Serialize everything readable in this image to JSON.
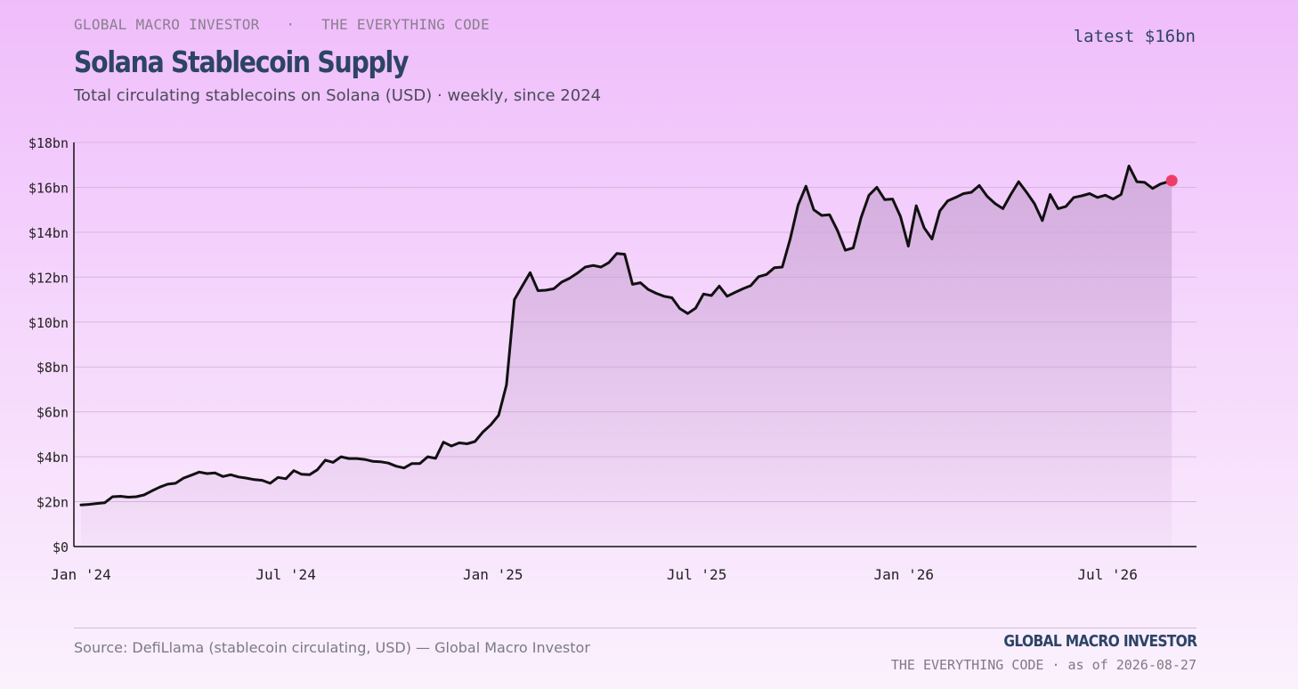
{
  "header": {
    "kicker_left": "GLOBAL MACRO INVESTOR",
    "kicker_sep": "·",
    "kicker_right": "THE EVERYTHING CODE",
    "latest": "latest $16bn",
    "title": "Solana Stablecoin Supply",
    "subtitle": "Total circulating stablecoins on Solana (USD) · weekly, since 2024"
  },
  "footer": {
    "source": "Source: DefiLlama (stablecoin circulating, USD) — Global Macro Investor",
    "brand": "GLOBAL MACRO INVESTOR",
    "asof": "THE EVERYTHING CODE · as of 2026-08-27"
  },
  "colors": {
    "line": "#111111",
    "area": "#c9a3d3",
    "marker": "#ef3c67",
    "grid": "#d6b7dd",
    "axis": "#111111"
  },
  "chart_data": {
    "type": "area",
    "title": "Solana Stablecoin Supply",
    "subtitle": "Total circulating stablecoins on Solana (USD) · weekly, since 2024",
    "xlabel": "",
    "ylabel": "",
    "unit": "$bn",
    "ylim": [
      0,
      18
    ],
    "yticks": [
      0,
      2,
      4,
      6,
      8,
      10,
      12,
      14,
      16,
      18
    ],
    "ytick_labels": [
      "$0",
      "$2bn",
      "$4bn",
      "$6bn",
      "$8bn",
      "$10bn",
      "$12bn",
      "$14bn",
      "$16bn",
      "$18bn"
    ],
    "xlim": [
      "2024-01-01",
      "2026-08-27"
    ],
    "xticks": [
      "2024-01-01",
      "2024-07-01",
      "2025-01-01",
      "2025-07-01",
      "2026-01-01",
      "2026-07-01"
    ],
    "xtick_labels": [
      "Jan '24",
      "Jul '24",
      "Jan '25",
      "Jul '25",
      "Jan '26",
      "Jul '26"
    ],
    "grid": true,
    "latest_marker": {
      "x": "2026-08-27",
      "y": 16.3
    },
    "series": [
      {
        "values": [
          [
            "2024-01-01",
            1.85
          ],
          [
            "2024-01-08",
            1.88
          ],
          [
            "2024-01-15",
            1.92
          ],
          [
            "2024-01-22",
            1.95
          ],
          [
            "2024-01-29",
            2.22
          ],
          [
            "2024-02-05",
            2.24
          ],
          [
            "2024-02-12",
            2.2
          ],
          [
            "2024-02-19",
            2.22
          ],
          [
            "2024-02-26",
            2.3
          ],
          [
            "2024-03-04",
            2.48
          ],
          [
            "2024-03-11",
            2.65
          ],
          [
            "2024-03-18",
            2.78
          ],
          [
            "2024-03-25",
            2.82
          ],
          [
            "2024-04-01",
            3.05
          ],
          [
            "2024-04-08",
            3.18
          ],
          [
            "2024-04-15",
            3.32
          ],
          [
            "2024-04-22",
            3.25
          ],
          [
            "2024-04-29",
            3.28
          ],
          [
            "2024-05-06",
            3.12
          ],
          [
            "2024-05-13",
            3.2
          ],
          [
            "2024-05-20",
            3.1
          ],
          [
            "2024-05-27",
            3.05
          ],
          [
            "2024-06-03",
            2.98
          ],
          [
            "2024-06-10",
            2.95
          ],
          [
            "2024-06-17",
            2.82
          ],
          [
            "2024-06-24",
            3.08
          ],
          [
            "2024-07-01",
            3.02
          ],
          [
            "2024-07-08",
            3.38
          ],
          [
            "2024-07-15",
            3.22
          ],
          [
            "2024-07-22",
            3.2
          ],
          [
            "2024-07-29",
            3.42
          ],
          [
            "2024-08-05",
            3.85
          ],
          [
            "2024-08-12",
            3.75
          ],
          [
            "2024-08-19",
            4.0
          ],
          [
            "2024-08-26",
            3.92
          ],
          [
            "2024-09-02",
            3.92
          ],
          [
            "2024-09-09",
            3.88
          ],
          [
            "2024-09-16",
            3.8
          ],
          [
            "2024-09-23",
            3.78
          ],
          [
            "2024-09-30",
            3.72
          ],
          [
            "2024-10-07",
            3.58
          ],
          [
            "2024-10-14",
            3.5
          ],
          [
            "2024-10-21",
            3.7
          ],
          [
            "2024-10-28",
            3.7
          ],
          [
            "2024-11-04",
            4.0
          ],
          [
            "2024-11-11",
            3.93
          ],
          [
            "2024-11-18",
            4.65
          ],
          [
            "2024-11-25",
            4.48
          ],
          [
            "2024-12-02",
            4.62
          ],
          [
            "2024-12-09",
            4.58
          ],
          [
            "2024-12-16",
            4.68
          ],
          [
            "2024-12-23",
            5.1
          ],
          [
            "2024-12-30",
            5.42
          ],
          [
            "2025-01-06",
            5.85
          ],
          [
            "2025-01-13",
            7.2
          ],
          [
            "2025-01-20",
            11.0
          ],
          [
            "2025-01-27",
            11.6
          ],
          [
            "2025-02-03",
            12.2
          ],
          [
            "2025-02-10",
            11.4
          ],
          [
            "2025-02-17",
            11.42
          ],
          [
            "2025-02-24",
            11.48
          ],
          [
            "2025-03-03",
            11.78
          ],
          [
            "2025-03-10",
            11.95
          ],
          [
            "2025-03-17",
            12.18
          ],
          [
            "2025-03-24",
            12.45
          ],
          [
            "2025-03-31",
            12.52
          ],
          [
            "2025-04-07",
            12.45
          ],
          [
            "2025-04-14",
            12.65
          ],
          [
            "2025-04-21",
            13.05
          ],
          [
            "2025-04-28",
            13.02
          ],
          [
            "2025-05-05",
            11.68
          ],
          [
            "2025-05-12",
            11.75
          ],
          [
            "2025-05-19",
            11.45
          ],
          [
            "2025-05-26",
            11.28
          ],
          [
            "2025-06-02",
            11.15
          ],
          [
            "2025-06-09",
            11.08
          ],
          [
            "2025-06-16",
            10.6
          ],
          [
            "2025-06-23",
            10.38
          ],
          [
            "2025-06-30",
            10.62
          ],
          [
            "2025-07-07",
            11.25
          ],
          [
            "2025-07-14",
            11.18
          ],
          [
            "2025-07-21",
            11.6
          ],
          [
            "2025-07-28",
            11.15
          ],
          [
            "2025-08-04",
            11.32
          ],
          [
            "2025-08-11",
            11.48
          ],
          [
            "2025-08-18",
            11.62
          ],
          [
            "2025-08-25",
            12.02
          ],
          [
            "2025-09-01",
            12.12
          ],
          [
            "2025-09-08",
            12.42
          ],
          [
            "2025-09-15",
            12.45
          ],
          [
            "2025-09-22",
            13.7
          ],
          [
            "2025-09-29",
            15.2
          ],
          [
            "2025-10-06",
            16.05
          ],
          [
            "2025-10-13",
            15.0
          ],
          [
            "2025-10-20",
            14.75
          ],
          [
            "2025-10-27",
            14.78
          ],
          [
            "2025-11-03",
            14.08
          ],
          [
            "2025-11-10",
            13.2
          ],
          [
            "2025-11-17",
            13.3
          ],
          [
            "2025-11-24",
            14.65
          ],
          [
            "2025-12-01",
            15.65
          ],
          [
            "2025-12-08",
            16.0
          ],
          [
            "2025-12-15",
            15.45
          ],
          [
            "2025-12-22",
            15.48
          ],
          [
            "2025-12-29",
            14.7
          ],
          [
            "2026-01-05",
            13.38
          ],
          [
            "2026-01-12",
            15.18
          ],
          [
            "2026-01-19",
            14.2
          ],
          [
            "2026-01-26",
            13.7
          ],
          [
            "2026-02-02",
            14.95
          ],
          [
            "2026-02-09",
            15.4
          ],
          [
            "2026-02-16",
            15.55
          ],
          [
            "2026-02-23",
            15.72
          ],
          [
            "2026-03-02",
            15.78
          ],
          [
            "2026-03-09",
            16.08
          ],
          [
            "2026-03-16",
            15.6
          ],
          [
            "2026-03-23",
            15.28
          ],
          [
            "2026-03-30",
            15.05
          ],
          [
            "2026-04-06",
            15.68
          ],
          [
            "2026-04-13",
            16.25
          ],
          [
            "2026-04-20",
            15.78
          ],
          [
            "2026-04-27",
            15.28
          ],
          [
            "2026-05-04",
            14.52
          ],
          [
            "2026-05-11",
            15.68
          ],
          [
            "2026-05-18",
            15.05
          ],
          [
            "2026-05-25",
            15.15
          ],
          [
            "2026-06-01",
            15.55
          ],
          [
            "2026-06-08",
            15.62
          ],
          [
            "2026-06-15",
            15.72
          ],
          [
            "2026-06-22",
            15.55
          ],
          [
            "2026-06-29",
            15.65
          ],
          [
            "2026-07-06",
            15.48
          ],
          [
            "2026-07-13",
            15.68
          ],
          [
            "2026-07-20",
            16.95
          ],
          [
            "2026-07-27",
            16.25
          ],
          [
            "2026-08-03",
            16.22
          ],
          [
            "2026-08-10",
            15.95
          ],
          [
            "2026-08-17",
            16.15
          ],
          [
            "2026-08-27",
            16.3
          ]
        ]
      }
    ]
  }
}
